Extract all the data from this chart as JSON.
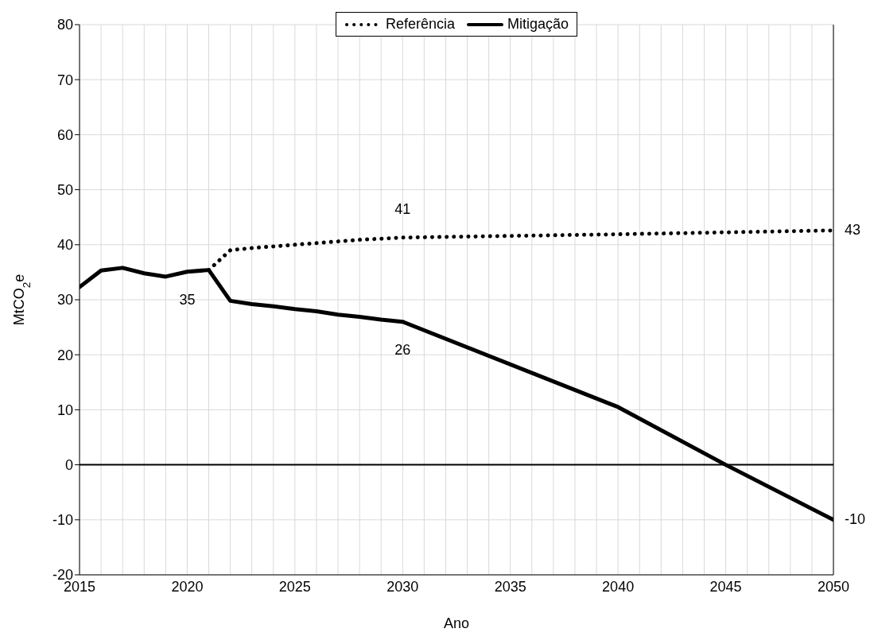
{
  "chart_data": {
    "type": "line",
    "xlabel": "Ano",
    "ylabel": "MtCO$_{2}$e",
    "xlim": [
      2015,
      2050
    ],
    "xticks": [
      2015,
      {
        "value": 2016,
        "label": null
      },
      {
        "value": 2017,
        "label": null
      },
      {
        "value": 2018,
        "label": null
      },
      {
        "value": 2019,
        "label": null
      },
      2020,
      {
        "value": 2021,
        "label": null
      },
      {
        "value": 2022,
        "label": null
      },
      {
        "value": 2023,
        "label": null
      },
      {
        "value": 2024,
        "label": null
      },
      2025,
      {
        "value": 2026,
        "label": null
      },
      {
        "value": 2027,
        "label": null
      },
      {
        "value": 2028,
        "label": null
      },
      {
        "value": 2029,
        "label": null
      },
      2030,
      {
        "value": 2031,
        "label": null
      },
      {
        "value": 2032,
        "label": null
      },
      {
        "value": 2033,
        "label": null
      },
      {
        "value": 2034,
        "label": null
      },
      2035,
      {
        "value": 2036,
        "label": null
      },
      {
        "value": 2037,
        "label": null
      },
      {
        "value": 2038,
        "label": null
      },
      {
        "value": 2039,
        "label": null
      },
      2040,
      {
        "value": 2041,
        "label": null
      },
      {
        "value": 2042,
        "label": null
      },
      {
        "value": 2043,
        "label": null
      },
      {
        "value": 2044,
        "label": null
      },
      2045,
      {
        "value": 2046,
        "label": null
      },
      {
        "value": 2047,
        "label": null
      },
      {
        "value": 2048,
        "label": null
      },
      {
        "value": 2049,
        "label": null
      },
      2050
    ],
    "ylim": [
      -20,
      80
    ],
    "yticks": [
      -20,
      -10,
      0,
      10,
      20,
      30,
      40,
      50,
      60,
      70,
      80
    ],
    "grid": true,
    "legend": "top",
    "marker": "none",
    "series": [
      {
        "name": "Referência",
        "color": "#000000",
        "line_style": "dotted",
        "x": [
          2021,
          2022,
          2023,
          2024,
          2025,
          2026,
          2027,
          2028,
          2029,
          2030,
          2040,
          2050
        ],
        "values": [
          35.4,
          39.0,
          39.4,
          39.7,
          40.0,
          40.3,
          40.6,
          40.9,
          41.1,
          41.3,
          41.9,
          42.6
        ]
      },
      {
        "name": "Mitigação",
        "color": "#000000",
        "line_style": "solid",
        "x": [
          2015,
          2016,
          2017,
          2018,
          2019,
          2020,
          2021,
          2022,
          2023,
          2024,
          2025,
          2026,
          2027,
          2028,
          2029,
          2030,
          2040,
          2045,
          2050
        ],
        "values": [
          32.3,
          35.3,
          35.8,
          34.8,
          34.2,
          35.1,
          35.4,
          29.8,
          29.2,
          28.8,
          28.3,
          27.9,
          27.3,
          26.9,
          26.4,
          26.0,
          10.5,
          0,
          -10
        ]
      }
    ],
    "ref_lines": [
      {
        "axis": "y",
        "value": 0,
        "color": "#000000"
      }
    ],
    "annotations": [
      {
        "text": "35",
        "x": 2020,
        "y": 35.1
      },
      {
        "text": "41",
        "x": 2030,
        "y": 41.3
      },
      {
        "text": "26",
        "x": 2030,
        "y": 26.0
      },
      {
        "text": "43",
        "x": 2050,
        "y": 42.6
      },
      {
        "text": "-10",
        "x": 2050,
        "y": -10
      }
    ]
  }
}
